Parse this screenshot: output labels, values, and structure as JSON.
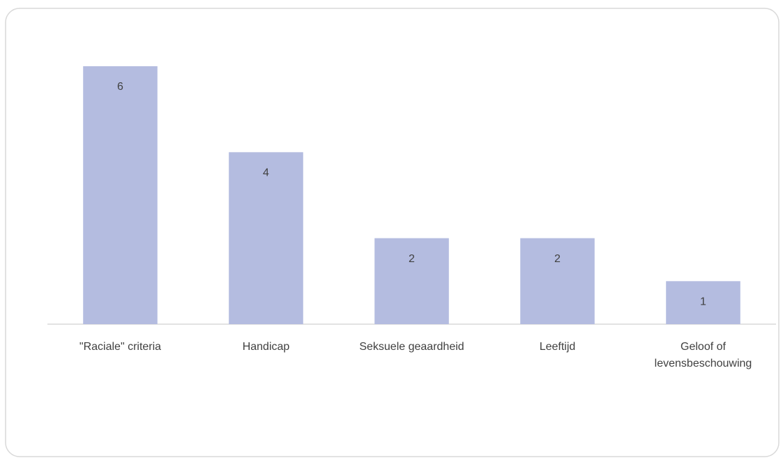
{
  "chart_data": {
    "type": "bar",
    "categories": [
      "\"Raciale\" criteria",
      "Handicap",
      "Seksuele geaardheid",
      "Leeftijd",
      "Geloof of levensbeschouwing"
    ],
    "values": [
      6,
      4,
      2,
      2,
      1
    ],
    "color": "#b4bce0"
  }
}
